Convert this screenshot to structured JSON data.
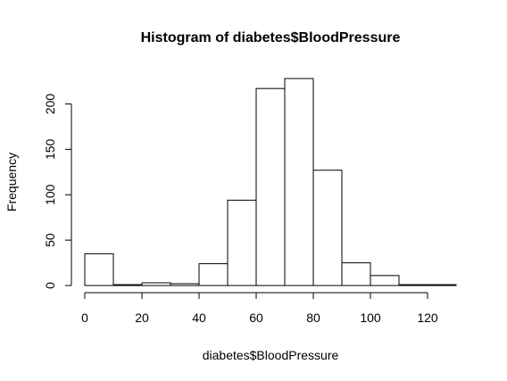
{
  "chart_data": {
    "type": "bar",
    "title": "Histogram of diabetes$BloodPressure",
    "xlabel": "diabetes$BloodPressure",
    "ylabel": "Frequency",
    "bins": [
      {
        "from": 0,
        "to": 10,
        "value": 35
      },
      {
        "from": 10,
        "to": 20,
        "value": 1
      },
      {
        "from": 20,
        "to": 30,
        "value": 3
      },
      {
        "from": 30,
        "to": 40,
        "value": 2
      },
      {
        "from": 40,
        "to": 50,
        "value": 24
      },
      {
        "from": 50,
        "to": 60,
        "value": 94
      },
      {
        "from": 60,
        "to": 70,
        "value": 217
      },
      {
        "from": 70,
        "to": 80,
        "value": 228
      },
      {
        "from": 80,
        "to": 90,
        "value": 127
      },
      {
        "from": 90,
        "to": 100,
        "value": 25
      },
      {
        "from": 100,
        "to": 110,
        "value": 11
      },
      {
        "from": 110,
        "to": 120,
        "value": 1
      },
      {
        "from": 120,
        "to": 130,
        "value": 1
      }
    ],
    "xlim": [
      0,
      130
    ],
    "ylim": [
      0,
      228
    ],
    "xticks": [
      0,
      20,
      40,
      60,
      80,
      100,
      120
    ],
    "yticks": [
      0,
      50,
      100,
      150,
      200
    ],
    "grid": false,
    "colors": {
      "bar_fill": "#ffffff",
      "bar_stroke": "#000000"
    }
  }
}
